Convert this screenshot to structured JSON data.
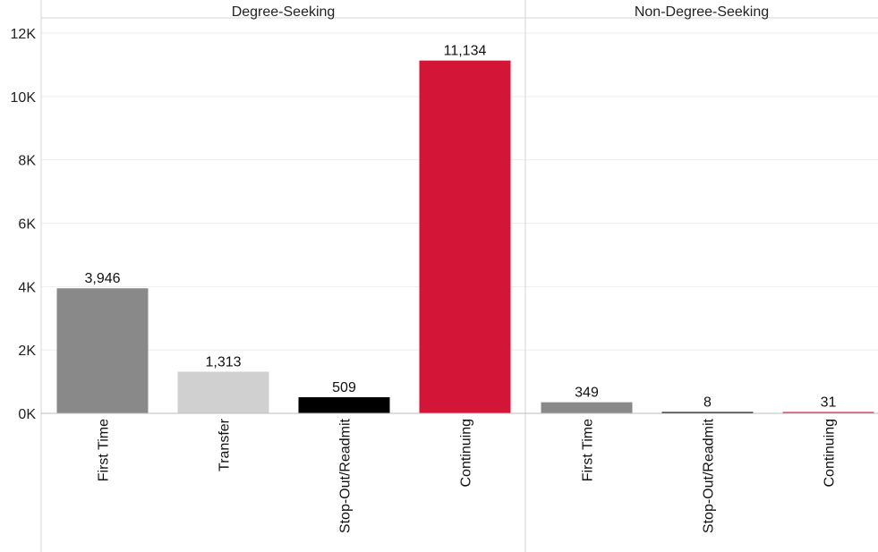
{
  "chart_data": {
    "type": "bar",
    "ylim": [
      0,
      12500
    ],
    "y_ticks": [
      {
        "value": 0,
        "label": "0K"
      },
      {
        "value": 2000,
        "label": "2K"
      },
      {
        "value": 4000,
        "label": "4K"
      },
      {
        "value": 6000,
        "label": "6K"
      },
      {
        "value": 8000,
        "label": "8K"
      },
      {
        "value": 10000,
        "label": "10K"
      },
      {
        "value": 12000,
        "label": "12K"
      }
    ],
    "grid": true,
    "panels": [
      {
        "header": "Degree-Seeking",
        "bars": [
          {
            "category": "First Time",
            "value": 3946,
            "label": "3,946",
            "color": "#898989"
          },
          {
            "category": "Transfer",
            "value": 1313,
            "label": "1,313",
            "color": "#d0d0d0"
          },
          {
            "category": "Stop-Out/Readmit",
            "value": 509,
            "label": "509",
            "color": "#000000"
          },
          {
            "category": "Continuing",
            "value": 11134,
            "label": "11,134",
            "color": "#d31638"
          }
        ]
      },
      {
        "header": "Non-Degree-Seeking",
        "bars": [
          {
            "category": "First Time",
            "value": 349,
            "label": "349",
            "color": "#898989"
          },
          {
            "category": "Stop-Out/Readmit",
            "value": 8,
            "label": "8",
            "color": "#000000"
          },
          {
            "category": "Continuing",
            "value": 31,
            "label": "31",
            "color": "#d31638"
          }
        ]
      }
    ]
  }
}
